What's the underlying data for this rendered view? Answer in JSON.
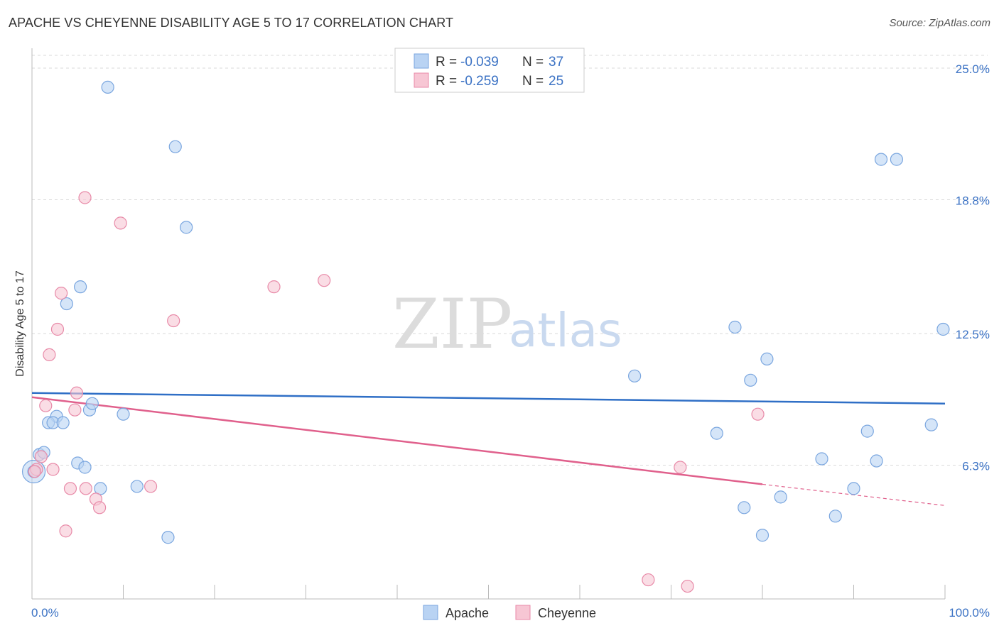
{
  "title": "APACHE VS CHEYENNE DISABILITY AGE 5 TO 17 CORRELATION CHART",
  "source": "Source: ZipAtlas.com",
  "watermark": {
    "zip": "ZIP",
    "atlas": "atlas"
  },
  "colors": {
    "apache_fill": "#b9d3f3",
    "apache_stroke": "#7aa6df",
    "apache_line": "#2f6fc6",
    "cheyenne_fill": "#f7c6d4",
    "cheyenne_stroke": "#e88aa8",
    "cheyenne_line": "#e0608c",
    "grid": "#d9d9d9",
    "axis_label": "#3b72c4"
  },
  "legend": {
    "rows": [
      {
        "series": "apache",
        "r_label": "R =",
        "r_value": "-0.039",
        "n_label": "N =",
        "n_value": "37"
      },
      {
        "series": "cheyenne",
        "r_label": "R =",
        "r_value": "-0.259",
        "n_label": "N =",
        "n_value": "25"
      }
    ]
  },
  "chart_data": {
    "type": "scatter",
    "title": "APACHE VS CHEYENNE DISABILITY AGE 5 TO 17 CORRELATION CHART",
    "xlabel": "",
    "ylabel": "Disability Age 5 to 17",
    "xlim": [
      0,
      100
    ],
    "ylim": [
      0,
      25.6
    ],
    "x_tick_labels": [
      "0.0%",
      "100.0%"
    ],
    "y_ticks": [
      6.3,
      12.5,
      18.8,
      25.0
    ],
    "y_tick_labels": [
      "6.3%",
      "12.5%",
      "18.8%",
      "25.0%"
    ],
    "grid": true,
    "legend_position": "top-center",
    "series": [
      {
        "name": "Apache",
        "color": "#b9d3f3",
        "points": [
          [
            8.3,
            24.1
          ],
          [
            15.7,
            21.3
          ],
          [
            16.9,
            17.5
          ],
          [
            5.3,
            14.7
          ],
          [
            3.8,
            13.9
          ],
          [
            2.7,
            8.6
          ],
          [
            1.8,
            8.3
          ],
          [
            2.3,
            8.3
          ],
          [
            3.4,
            8.3
          ],
          [
            6.3,
            8.9
          ],
          [
            10.0,
            8.7
          ],
          [
            6.6,
            9.2
          ],
          [
            0.8,
            6.8
          ],
          [
            1.3,
            6.9
          ],
          [
            5.0,
            6.4
          ],
          [
            5.8,
            6.2
          ],
          [
            7.5,
            5.2
          ],
          [
            11.5,
            5.3
          ],
          [
            14.9,
            2.9
          ],
          [
            0.2,
            6.0
          ],
          [
            77.0,
            12.8
          ],
          [
            66.0,
            10.5
          ],
          [
            78.7,
            10.3
          ],
          [
            80.5,
            11.3
          ],
          [
            75.0,
            7.8
          ],
          [
            86.5,
            6.6
          ],
          [
            88.0,
            3.9
          ],
          [
            90.0,
            5.2
          ],
          [
            91.5,
            7.9
          ],
          [
            92.5,
            6.5
          ],
          [
            93.0,
            20.7
          ],
          [
            94.7,
            20.7
          ],
          [
            99.8,
            12.7
          ],
          [
            98.5,
            8.2
          ],
          [
            78.0,
            4.3
          ],
          [
            82.0,
            4.8
          ],
          [
            80.0,
            3.0
          ]
        ]
      },
      {
        "name": "Cheyenne",
        "color": "#f7c6d4",
        "points": [
          [
            5.8,
            18.9
          ],
          [
            9.7,
            17.7
          ],
          [
            3.2,
            14.4
          ],
          [
            2.8,
            12.7
          ],
          [
            1.9,
            11.5
          ],
          [
            1.5,
            9.1
          ],
          [
            4.7,
            8.9
          ],
          [
            4.9,
            9.7
          ],
          [
            0.5,
            6.1
          ],
          [
            1.0,
            6.7
          ],
          [
            2.3,
            6.1
          ],
          [
            4.2,
            5.2
          ],
          [
            5.9,
            5.2
          ],
          [
            7.0,
            4.7
          ],
          [
            7.4,
            4.3
          ],
          [
            13.0,
            5.3
          ],
          [
            3.7,
            3.2
          ],
          [
            15.5,
            13.1
          ],
          [
            26.5,
            14.7
          ],
          [
            32.0,
            15.0
          ],
          [
            79.5,
            8.7
          ],
          [
            71.0,
            6.2
          ],
          [
            67.5,
            0.9
          ],
          [
            71.8,
            0.6
          ],
          [
            0.3,
            6.0
          ]
        ]
      }
    ],
    "trend_lines": [
      {
        "series": "Apache",
        "x": [
          0,
          100
        ],
        "y": [
          9.7,
          9.2
        ]
      },
      {
        "series": "Cheyenne",
        "x": [
          0,
          80
        ],
        "y": [
          9.5,
          5.4
        ],
        "dashed_to": [
          100,
          4.4
        ]
      }
    ]
  },
  "bottom_legend": [
    {
      "series": "apache",
      "label": "Apache"
    },
    {
      "series": "cheyenne",
      "label": "Cheyenne"
    }
  ]
}
